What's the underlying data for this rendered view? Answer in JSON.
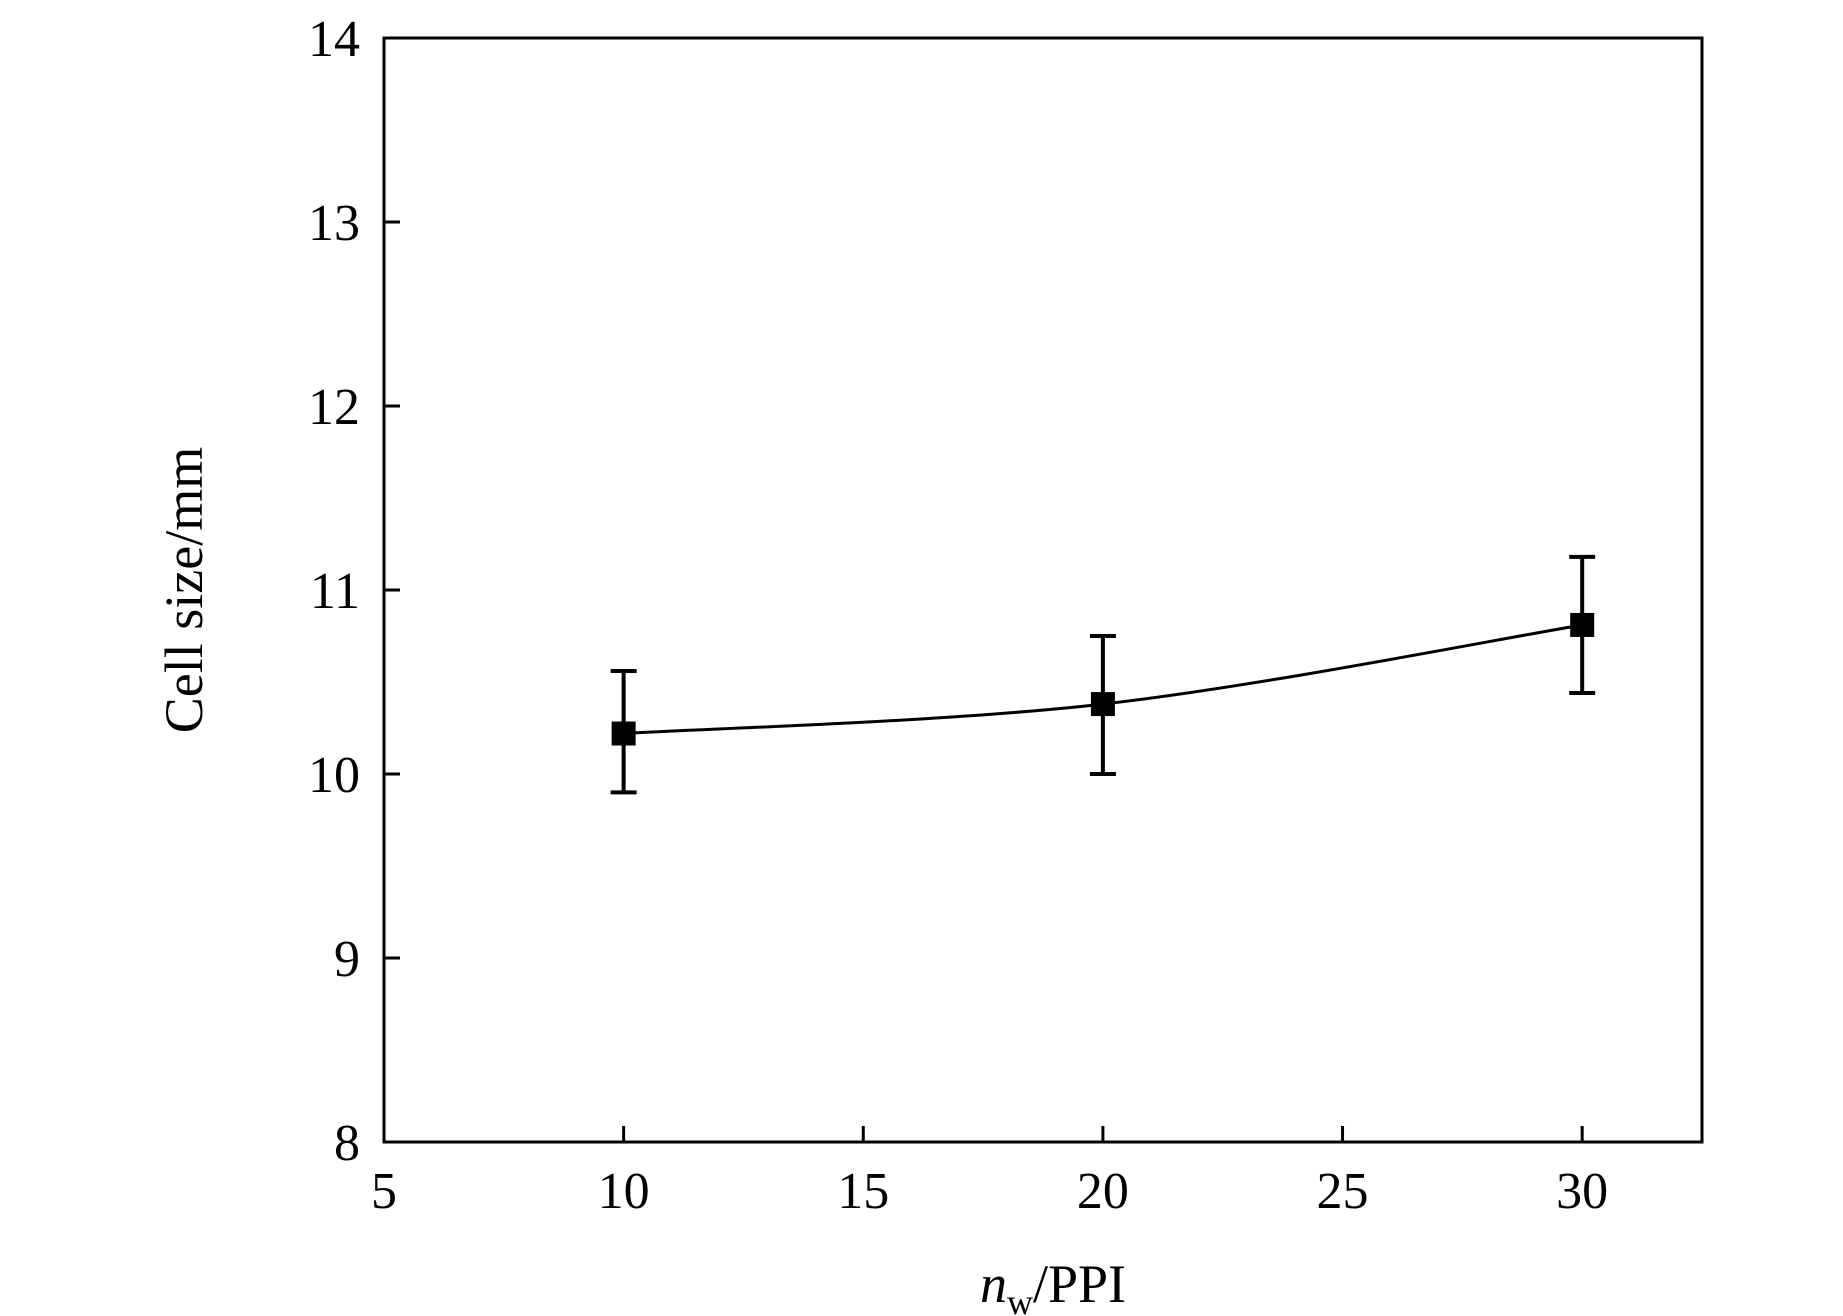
{
  "chart_data": {
    "type": "line",
    "xlabel": {
      "var": "n",
      "sub": "w",
      "unit": "/PPI"
    },
    "ylabel": "Cell size/mm",
    "xlim": [
      5,
      32.5
    ],
    "ylim": [
      8,
      14
    ],
    "xticks": [
      5,
      10,
      15,
      20,
      25,
      30
    ],
    "yticks": [
      8,
      9,
      10,
      11,
      12,
      13,
      14
    ],
    "grid": false,
    "series": [
      {
        "x": [
          10,
          20,
          30
        ],
        "y": [
          10.22,
          10.38,
          10.81
        ],
        "yerr_low": [
          9.9,
          10.0,
          10.44
        ],
        "yerr_high": [
          10.56,
          10.75,
          11.18
        ]
      }
    ],
    "colors": {
      "line": "#000000",
      "marker": "#000000"
    }
  }
}
